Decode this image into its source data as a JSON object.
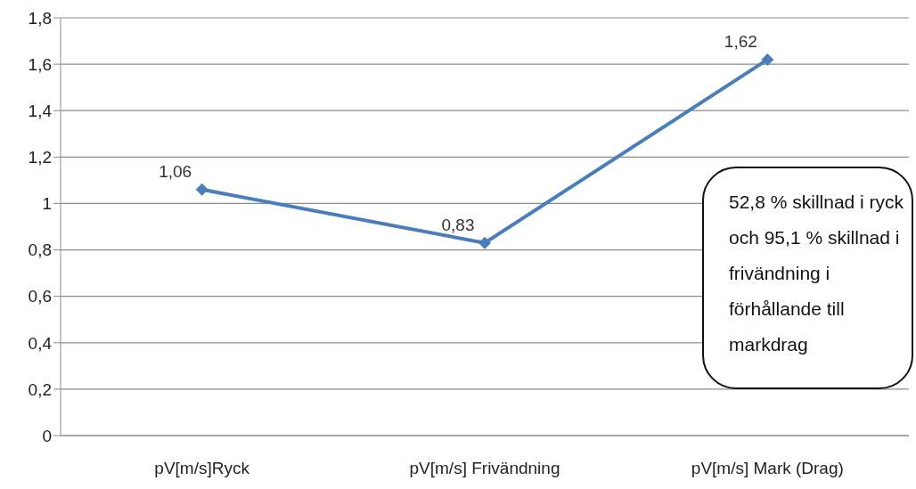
{
  "chart_data": {
    "type": "line",
    "categories": [
      "pV[m/s]Ryck",
      "pV[m/s] Frivändning",
      "pV[m/s] Mark (Drag)"
    ],
    "series": [
      {
        "color": "#4a7ebb",
        "values": [
          1.06,
          0.83,
          1.62
        ],
        "value_labels": [
          "1,06",
          "0,83",
          "1,62"
        ]
      }
    ],
    "ylim": [
      0,
      1.8
    ],
    "yticks": [
      0,
      {
        "value": 0.2,
        "label": "0,2"
      },
      {
        "value": 0.4,
        "label": "0,4"
      },
      {
        "value": 0.6,
        "label": "0,6"
      },
      {
        "value": 0.8,
        "label": "0,8"
      },
      1,
      {
        "value": 1.2,
        "label": "1,2"
      },
      {
        "value": 1.4,
        "label": "1,4"
      },
      {
        "value": 1.6,
        "label": "1,6"
      },
      {
        "value": 1.8,
        "label": "1,8"
      }
    ],
    "grid": "y",
    "marker": "diamond",
    "line_style": "solid",
    "annotations": [
      "52,8 % skillnad i ryck och 95,1 % skillnad i frivändning i förhållande till markdrag"
    ]
  }
}
